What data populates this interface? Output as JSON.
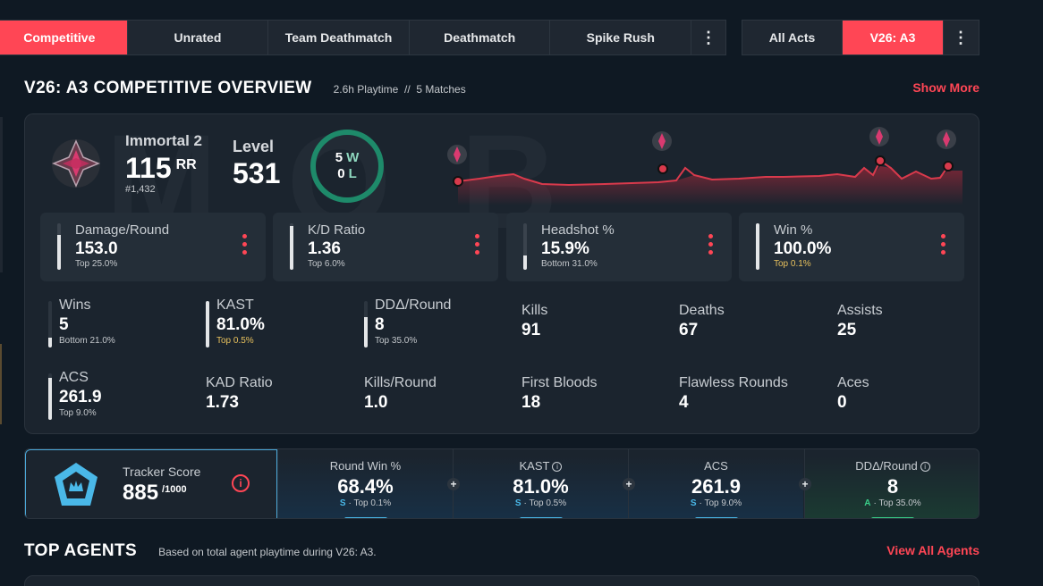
{
  "modes": [
    {
      "label": "Competitive",
      "active": true
    },
    {
      "label": "Unrated",
      "active": false
    },
    {
      "label": "Team Deathmatch",
      "active": false
    },
    {
      "label": "Deathmatch",
      "active": false
    },
    {
      "label": "Spike Rush",
      "active": false
    }
  ],
  "acts": [
    {
      "label": "All Acts",
      "active": false
    },
    {
      "label": "V26: A3",
      "active": true
    }
  ],
  "more_icon": "⋮",
  "overview": {
    "title": "V26: A3 COMPETITIVE OVERVIEW",
    "playtime": "2.6h Playtime",
    "separator": "//",
    "matches": "5 Matches",
    "show_more": "Show More"
  },
  "rank": {
    "icon": "immortal-rank-icon",
    "name": "Immortal 2",
    "rr": "115",
    "rr_unit": "RR",
    "position": "#1,432"
  },
  "level": {
    "label": "Level",
    "value": "531"
  },
  "record": {
    "wins": "5",
    "w": "W",
    "losses": "0",
    "l": "L"
  },
  "top_stats": [
    {
      "label": "Damage/Round",
      "value": "153.0",
      "percentile": "Top 25.0%",
      "fill": 0.75,
      "gold": false
    },
    {
      "label": "K/D Ratio",
      "value": "1.36",
      "percentile": "Top 6.0%",
      "fill": 0.94,
      "gold": false
    },
    {
      "label": "Headshot %",
      "value": "15.9%",
      "percentile": "Bottom 31.0%",
      "fill": 0.31,
      "gold": false
    },
    {
      "label": "Win %",
      "value": "100.0%",
      "percentile": "Top 0.1%",
      "fill": 0.999,
      "gold": true
    }
  ],
  "stats": [
    {
      "label": "Wins",
      "value": "5",
      "percentile": "Bottom 21.0%",
      "fill": 0.21,
      "gold": false,
      "bar": true
    },
    {
      "label": "KAST",
      "value": "81.0%",
      "percentile": "Top 0.5%",
      "fill": 0.995,
      "gold": true,
      "bar": true
    },
    {
      "label": "DDΔ/Round",
      "value": "8",
      "percentile": "Top 35.0%",
      "fill": 0.65,
      "gold": false,
      "bar": true
    },
    {
      "label": "Kills",
      "value": "91",
      "bar": false
    },
    {
      "label": "Deaths",
      "value": "67",
      "bar": false
    },
    {
      "label": "Assists",
      "value": "25",
      "bar": false
    },
    {
      "label": "ACS",
      "value": "261.9",
      "percentile": "Top 9.0%",
      "fill": 0.91,
      "gold": false,
      "bar": true
    },
    {
      "label": "KAD Ratio",
      "value": "1.73",
      "bar": false
    },
    {
      "label": "Kills/Round",
      "value": "1.0",
      "bar": false
    },
    {
      "label": "First Bloods",
      "value": "18",
      "bar": false
    },
    {
      "label": "Flawless Rounds",
      "value": "4",
      "bar": false
    },
    {
      "label": "Aces",
      "value": "0",
      "bar": false
    }
  ],
  "tracker": {
    "label": "Tracker Score",
    "score": "885",
    "max": "/1000",
    "info": "i",
    "columns": [
      {
        "label": "Round Win %",
        "info": false,
        "value": "68.4%",
        "grade": "S",
        "sub": "· Top 0.1%",
        "green": false
      },
      {
        "label": "KAST",
        "info": true,
        "value": "81.0%",
        "grade": "S",
        "sub": "· Top 0.5%",
        "green": false
      },
      {
        "label": "ACS",
        "info": false,
        "value": "261.9",
        "grade": "S",
        "sub": "· Top 9.0%",
        "green": false
      },
      {
        "label": "DDΔ/Round",
        "info": true,
        "value": "8",
        "grade": "A",
        "sub": "· Top 35.0%",
        "green": true
      }
    ]
  },
  "agents": {
    "title": "TOP AGENTS",
    "subtitle": "Based on total agent playtime during V26: A3.",
    "link": "View All Agents"
  },
  "colors": {
    "accent": "#ff4655",
    "bg": "#0f1923",
    "card": "#1b242e",
    "win": "#1e8a6a"
  }
}
